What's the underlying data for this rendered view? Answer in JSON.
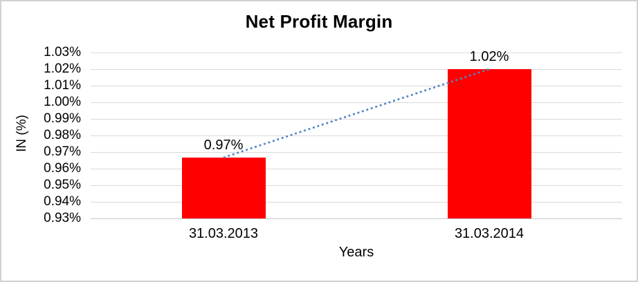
{
  "window": {
    "background": "#ffffff",
    "border_color": "#d1d1d1"
  },
  "chart_data": {
    "type": "bar",
    "title": "Net Profit Margin",
    "xlabel": "Years",
    "ylabel": "IN (%)",
    "categories": [
      "31.03.2013",
      "31.03.2014"
    ],
    "values": [
      0.9667,
      1.02
    ],
    "data_labels": [
      "0.97%",
      "1.02%"
    ],
    "ylim": [
      0.93,
      1.03
    ],
    "ytick_step": 0.01,
    "ytick_labels": [
      "1.03%",
      "1.02%",
      "1.01%",
      "1.00%",
      "0.99%",
      "0.98%",
      "0.97%",
      "0.96%",
      "0.95%",
      "0.94%",
      "0.93%"
    ],
    "grid": true,
    "legend": false,
    "bar_color": "#ff0000",
    "gridline_color": "#d9d9d9",
    "axis_line_color": "#c6c6c6",
    "text_color": "#000000",
    "trendline": {
      "type": "linear",
      "style": "dotted",
      "color": "#4f86c8",
      "connects": [
        "31.03.2013",
        "31.03.2014"
      ]
    }
  }
}
